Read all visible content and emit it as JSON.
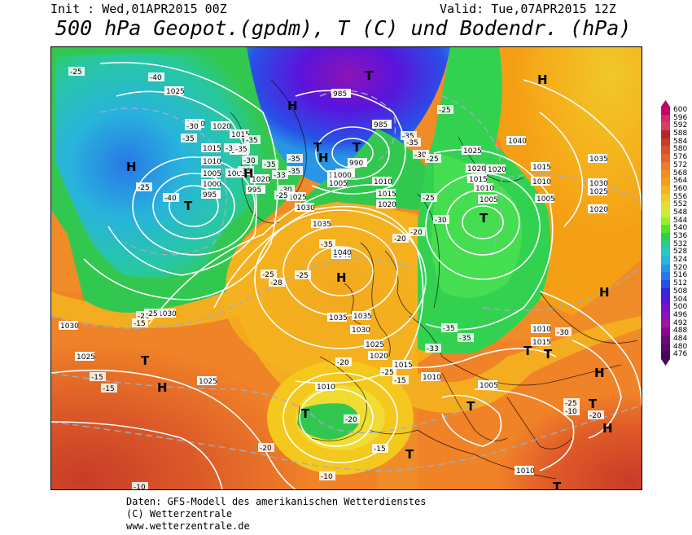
{
  "header": {
    "init": "Init : Wed,01APR2015 00Z",
    "valid": "Valid: Tue,07APR2015 12Z",
    "title": "500 hPa Geopot.(gpdm), T (C) und Bodendr. (hPa)"
  },
  "legend": {
    "values": [
      "600",
      "596",
      "592",
      "588",
      "584",
      "580",
      "576",
      "572",
      "568",
      "564",
      "560",
      "556",
      "552",
      "548",
      "544",
      "540",
      "536",
      "532",
      "528",
      "524",
      "520",
      "516",
      "512",
      "508",
      "504",
      "500",
      "496",
      "492",
      "488",
      "484",
      "480",
      "476"
    ],
    "colors": [
      "#c80064",
      "#d2286e",
      "#dc3c64",
      "#b42828",
      "#c83c28",
      "#dc5028",
      "#e66428",
      "#f07828",
      "#f58c1e",
      "#f5a014",
      "#f5b41e",
      "#f0c828",
      "#e6dc32",
      "#c8f032",
      "#96f028",
      "#50e628",
      "#28d250",
      "#32c896",
      "#28c8c8",
      "#28b4dc",
      "#2896e6",
      "#2878e6",
      "#2850e6",
      "#3228dc",
      "#5a14dc",
      "#7814c8",
      "#8c14b4",
      "#a014a0",
      "#8c0a8c",
      "#6e0a7d",
      "#5a0a6e",
      "#460a5a"
    ]
  },
  "map": {
    "pressure_labels": [
      "1025",
      "1020",
      "1015",
      "1010",
      "1005",
      "1000",
      "995",
      "1020",
      "1015",
      "1010",
      "1005",
      "1000",
      "995",
      "985",
      "985",
      "990",
      "985",
      "1000",
      "1005",
      "1010",
      "1015",
      "1020",
      "1025",
      "1030",
      "1035",
      "1040",
      "1035",
      "1030",
      "1025",
      "1020",
      "1015",
      "1010",
      "1005",
      "1000",
      "1025",
      "1020",
      "1015",
      "1010",
      "1005",
      "1010",
      "1015",
      "1020",
      "1025",
      "1030",
      "1035",
      "1040",
      "1020",
      "1015",
      "1010",
      "1005",
      "1010",
      "1010",
      "1030",
      "1025",
      "1025",
      "1020",
      "1030",
      "1035",
      "1040"
    ],
    "temp_labels": [
      "-25",
      "-40",
      "-30",
      "-35",
      "-35",
      "-35",
      "-35",
      "-25",
      "-40",
      "-35",
      "-30",
      "-35",
      "-35",
      "-33",
      "-35",
      "-30",
      "-25",
      "-20",
      "-35",
      "-25",
      "-35",
      "-35",
      "-30",
      "-25",
      "-25",
      "-30",
      "-20",
      "-25",
      "-28",
      "-25",
      "-20",
      "-25",
      "-15",
      "-15",
      "-15",
      "-20",
      "-20",
      "-20",
      "-15",
      "-15",
      "-10",
      "-10",
      "-15",
      "-10",
      "-20",
      "-25",
      "-25",
      "-33",
      "-35",
      "-35",
      "-30",
      "-20"
    ],
    "highs": [
      "H",
      "H",
      "H",
      "H",
      "H",
      "H",
      "H",
      "H",
      "H",
      "H"
    ],
    "lows": [
      "T",
      "T",
      "T",
      "T",
      "T",
      "T",
      "T",
      "T",
      "T",
      "T",
      "T",
      "T",
      "T"
    ]
  },
  "footer": {
    "line1": "Daten: GFS-Modell des amerikanischen Wetterdienstes",
    "line2": "(C) Wetterzentrale",
    "line3": "www.wetterzentrale.de"
  }
}
